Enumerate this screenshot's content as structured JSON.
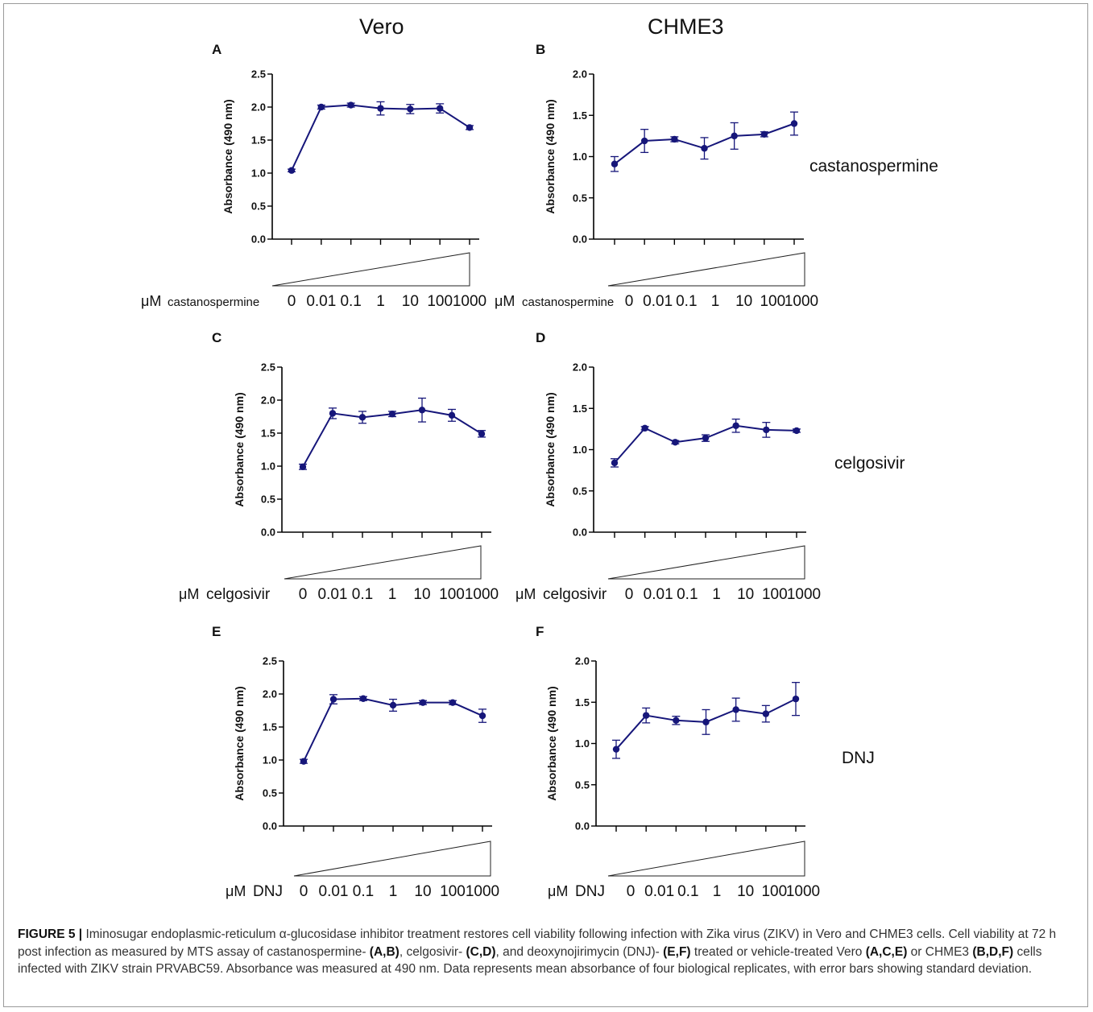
{
  "column_titles": [
    "Vero",
    "CHME3"
  ],
  "drug_labels": [
    "castanospermine",
    "celgosivir",
    "DNJ"
  ],
  "colors": {
    "series": "#16167a",
    "axis": "#000000",
    "frame": "#9a9a9a"
  },
  "caption": {
    "lead": "FIGURE 5 |",
    "parts": [
      {
        "t": " Iminosugar endoplasmic-reticulum α-glucosidase inhibitor treatment restores cell viability following infection with Zika virus (ZIKV) in Vero and CHME3 cells. Cell viability at 72 h post infection as measured by MTS assay of castanospermine- ",
        "b": false
      },
      {
        "t": "(A,B)",
        "b": true
      },
      {
        "t": ", celgosivir- ",
        "b": false
      },
      {
        "t": "(C,D)",
        "b": true
      },
      {
        "t": ", and deoxynojirimycin (DNJ)- ",
        "b": false
      },
      {
        "t": "(E,F)",
        "b": true
      },
      {
        "t": " treated or vehicle-treated Vero ",
        "b": false
      },
      {
        "t": "(A,C,E)",
        "b": true
      },
      {
        "t": " or CHME3 ",
        "b": false
      },
      {
        "t": "(B,D,F)",
        "b": true
      },
      {
        "t": " cells infected with ZIKV strain PRVABC59. Absorbance was measured at 490 nm. Data represents mean absorbance of four biological replicates, with error bars showing standard deviation.",
        "b": false
      }
    ]
  },
  "chart_data": [
    {
      "panel": "A",
      "type": "line",
      "ylabel": "Absorbance (490 nm)",
      "ylim": [
        0,
        2.5
      ],
      "yticks": [
        "0.0",
        "0.5",
        "1.0",
        "1.5",
        "2.0",
        "2.5"
      ],
      "xlabel_prefix": "μM",
      "xlabel_drug": "castanospermine",
      "categories": [
        "0",
        "0.01",
        "0.1",
        "1",
        "10",
        "100",
        "1000"
      ],
      "values": [
        1.04,
        2.0,
        2.03,
        1.98,
        1.97,
        1.98,
        1.69
      ],
      "errors": [
        0.02,
        0.03,
        0.03,
        0.1,
        0.07,
        0.07,
        0.03
      ]
    },
    {
      "panel": "B",
      "type": "line",
      "ylabel": "Absorbance (490 nm)",
      "ylim": [
        0,
        2.0
      ],
      "yticks": [
        "0.0",
        "0.5",
        "1.0",
        "1.5",
        "2.0"
      ],
      "xlabel_prefix": "μM",
      "xlabel_drug": "castanospermine",
      "categories": [
        "0",
        "0.01",
        "0.1",
        "1",
        "10",
        "100",
        "1000"
      ],
      "values": [
        0.91,
        1.19,
        1.21,
        1.1,
        1.25,
        1.27,
        1.4
      ],
      "errors": [
        0.09,
        0.14,
        0.03,
        0.13,
        0.16,
        0.03,
        0.14
      ]
    },
    {
      "panel": "C",
      "type": "line",
      "ylabel": "Absorbance (490 nm)",
      "ylim": [
        0,
        2.5
      ],
      "yticks": [
        "0.0",
        "0.5",
        "1.0",
        "1.5",
        "2.0",
        "2.5"
      ],
      "xlabel_prefix": "μM",
      "xlabel_drug": "celgosivir",
      "categories": [
        "0",
        "0.01",
        "0.1",
        "1",
        "10",
        "100",
        "1000"
      ],
      "values": [
        0.99,
        1.8,
        1.74,
        1.79,
        1.85,
        1.77,
        1.49
      ],
      "errors": [
        0.04,
        0.08,
        0.09,
        0.04,
        0.18,
        0.09,
        0.05
      ]
    },
    {
      "panel": "D",
      "type": "line",
      "ylabel": "Absorbance (490 nm)",
      "ylim": [
        0,
        2.0
      ],
      "yticks": [
        "0.0",
        "0.5",
        "1.0",
        "1.5",
        "2.0"
      ],
      "xlabel_prefix": "μM",
      "xlabel_drug": "celgosivir",
      "categories": [
        "0",
        "0.01",
        "0.1",
        "1",
        "10",
        "100",
        "1000"
      ],
      "values": [
        0.84,
        1.26,
        1.09,
        1.14,
        1.29,
        1.24,
        1.23
      ],
      "errors": [
        0.05,
        0.02,
        0.02,
        0.04,
        0.08,
        0.09,
        0.02
      ]
    },
    {
      "panel": "E",
      "type": "line",
      "ylabel": "Absorbance (490 nm)",
      "ylim": [
        0,
        2.5
      ],
      "yticks": [
        "0.0",
        "0.5",
        "1.0",
        "1.5",
        "2.0",
        "2.5"
      ],
      "xlabel_prefix": "μM",
      "xlabel_drug": "DNJ",
      "categories": [
        "0",
        "0.01",
        "0.1",
        "1",
        "10",
        "100",
        "1000"
      ],
      "values": [
        0.98,
        1.92,
        1.93,
        1.83,
        1.87,
        1.87,
        1.67
      ],
      "errors": [
        0.03,
        0.07,
        0.03,
        0.09,
        0.03,
        0.03,
        0.1
      ]
    },
    {
      "panel": "F",
      "type": "line",
      "ylabel": "Absorbance (490 nm)",
      "ylim": [
        0,
        2.0
      ],
      "yticks": [
        "0.0",
        "0.5",
        "1.0",
        "1.5",
        "2.0"
      ],
      "xlabel_prefix": "μM",
      "xlabel_drug": "DNJ",
      "categories": [
        "0",
        "0.01",
        "0.1",
        "1",
        "10",
        "100",
        "1000"
      ],
      "values": [
        0.93,
        1.34,
        1.28,
        1.26,
        1.41,
        1.36,
        1.54
      ],
      "errors": [
        0.11,
        0.09,
        0.05,
        0.15,
        0.14,
        0.1,
        0.2
      ]
    }
  ]
}
